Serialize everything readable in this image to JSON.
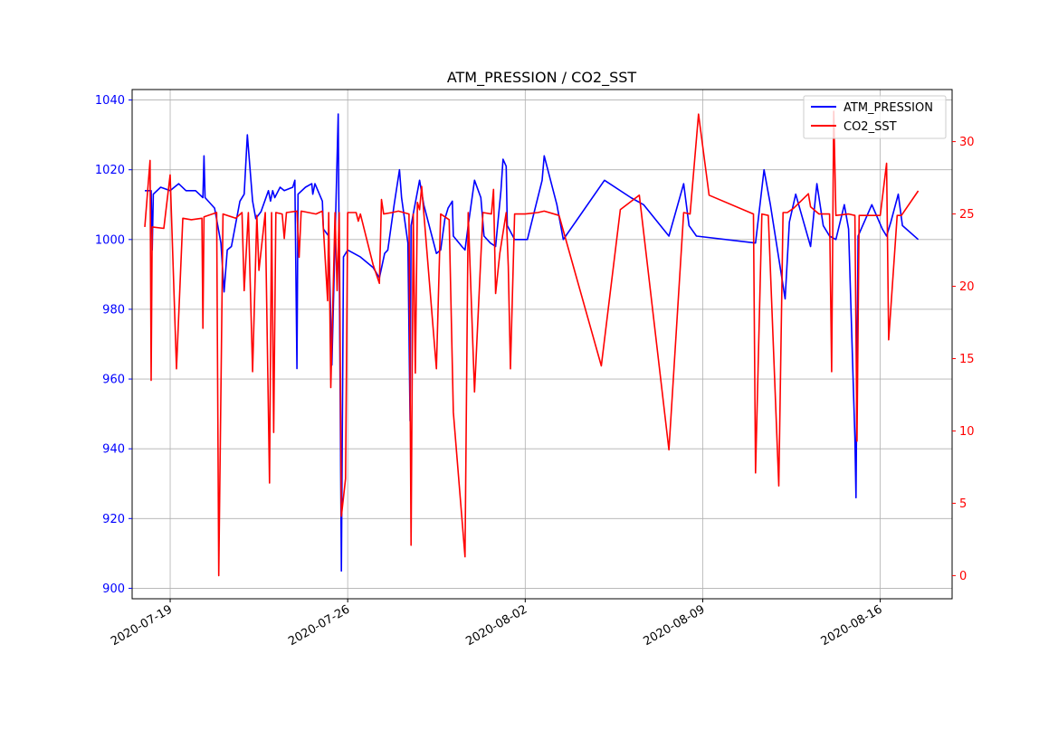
{
  "chart_data": {
    "type": "line",
    "title": "ATM_PRESSION / CO2_SST",
    "xlabel": "",
    "x_ticks": [
      "2020-07-19",
      "2020-07-26",
      "2020-08-02",
      "2020-08-09",
      "2020-08-16"
    ],
    "xlim": [
      "2020-07-17T12:00",
      "2020-08-18T20:00"
    ],
    "y_left": {
      "lim": [
        897,
        1043
      ],
      "ticks": [
        900,
        920,
        940,
        960,
        980,
        1000,
        1020,
        1040
      ],
      "color": "#0000ff"
    },
    "y_right": {
      "lim": [
        -1.6,
        33.6
      ],
      "ticks": [
        0,
        5,
        10,
        15,
        20,
        25,
        30
      ],
      "color": "#ff0000"
    },
    "grid": true,
    "legend_position": "top-right",
    "series": [
      {
        "name": "ATM_PRESSION",
        "color": "#0000ff",
        "axis": "left",
        "points": [
          [
            "2020-07-18T00:00",
            1014
          ],
          [
            "2020-07-18T06:00",
            1014
          ],
          [
            "2020-07-18T07:00",
            997
          ],
          [
            "2020-07-18T08:00",
            1013
          ],
          [
            "2020-07-18T15:00",
            1015
          ],
          [
            "2020-07-19T00:00",
            1014
          ],
          [
            "2020-07-19T08:00",
            1016
          ],
          [
            "2020-07-19T15:00",
            1014
          ],
          [
            "2020-07-20T00:00",
            1014
          ],
          [
            "2020-07-20T07:00",
            1012
          ],
          [
            "2020-07-20T08:00",
            1024
          ],
          [
            "2020-07-20T09:00",
            1012
          ],
          [
            "2020-07-20T18:00",
            1009
          ],
          [
            "2020-07-21T00:00",
            999
          ],
          [
            "2020-07-21T03:00",
            985
          ],
          [
            "2020-07-21T06:00",
            997
          ],
          [
            "2020-07-21T10:00",
            998
          ],
          [
            "2020-07-21T18:00",
            1011
          ],
          [
            "2020-07-21T22:00",
            1013
          ],
          [
            "2020-07-22T01:00",
            1030
          ],
          [
            "2020-07-22T06:00",
            1011
          ],
          [
            "2020-07-22T09:00",
            1006
          ],
          [
            "2020-07-22T14:00",
            1008
          ],
          [
            "2020-07-22T21:00",
            1014
          ],
          [
            "2020-07-22T23:00",
            1011
          ],
          [
            "2020-07-23T01:00",
            1014
          ],
          [
            "2020-07-23T03:00",
            1012
          ],
          [
            "2020-07-23T08:00",
            1015
          ],
          [
            "2020-07-23T12:00",
            1014
          ],
          [
            "2020-07-23T20:00",
            1015
          ],
          [
            "2020-07-23T22:00",
            1017
          ],
          [
            "2020-07-24T00:00",
            963
          ],
          [
            "2020-07-24T01:00",
            1013
          ],
          [
            "2020-07-24T08:00",
            1015
          ],
          [
            "2020-07-24T14:00",
            1016
          ],
          [
            "2020-07-24T15:00",
            1013
          ],
          [
            "2020-07-24T17:00",
            1016
          ],
          [
            "2020-07-25T00:00",
            1011
          ],
          [
            "2020-07-25T01:00",
            1003
          ],
          [
            "2020-07-25T06:00",
            1001
          ],
          [
            "2020-07-25T09:00",
            964
          ],
          [
            "2020-07-25T15:00",
            1036
          ],
          [
            "2020-07-25T18:00",
            905
          ],
          [
            "2020-07-25T20:00",
            995
          ],
          [
            "2020-07-26T00:00",
            997
          ],
          [
            "2020-07-26T12:00",
            995
          ],
          [
            "2020-07-27T00:00",
            992
          ],
          [
            "2020-07-27T06:00",
            989
          ],
          [
            "2020-07-27T11:00",
            996
          ],
          [
            "2020-07-27T14:00",
            997
          ],
          [
            "2020-07-27T20:00",
            1010
          ],
          [
            "2020-07-28T01:00",
            1020
          ],
          [
            "2020-07-28T03:00",
            1012
          ],
          [
            "2020-07-28T09:00",
            999
          ],
          [
            "2020-07-28T11:00",
            948
          ],
          [
            "2020-07-28T12:00",
            1004
          ],
          [
            "2020-07-28T20:00",
            1017
          ],
          [
            "2020-07-29T00:00",
            1010
          ],
          [
            "2020-07-29T12:00",
            996
          ],
          [
            "2020-07-29T16:00",
            997
          ],
          [
            "2020-07-29T20:00",
            1006
          ],
          [
            "2020-07-29T23:00",
            1009
          ],
          [
            "2020-07-30T03:00",
            1011
          ],
          [
            "2020-07-30T04:00",
            1001
          ],
          [
            "2020-07-30T12:00",
            998
          ],
          [
            "2020-07-30T15:00",
            997
          ],
          [
            "2020-07-30T18:00",
            1004
          ],
          [
            "2020-07-31T00:00",
            1017
          ],
          [
            "2020-07-31T06:00",
            1012
          ],
          [
            "2020-07-31T09:00",
            1001
          ],
          [
            "2020-07-31T15:00",
            999
          ],
          [
            "2020-07-31T20:00",
            998
          ],
          [
            "2020-08-01T01:00",
            1014
          ],
          [
            "2020-08-01T03:00",
            1023
          ],
          [
            "2020-08-01T06:00",
            1021
          ],
          [
            "2020-08-01T07:00",
            1004
          ],
          [
            "2020-08-01T14:00",
            1000
          ],
          [
            "2020-08-02T02:00",
            1000
          ],
          [
            "2020-08-02T16:00",
            1017
          ],
          [
            "2020-08-02T18:00",
            1024
          ],
          [
            "2020-08-03T06:00",
            1010
          ],
          [
            "2020-08-03T12:00",
            1000
          ],
          [
            "2020-08-05T03:00",
            1017
          ],
          [
            "2020-08-06T04:00",
            1012
          ],
          [
            "2020-08-06T16:00",
            1010
          ],
          [
            "2020-08-07T16:00",
            1001
          ],
          [
            "2020-08-08T06:00",
            1016
          ],
          [
            "2020-08-08T11:00",
            1004
          ],
          [
            "2020-08-08T18:00",
            1001
          ],
          [
            "2020-08-11T02:00",
            999
          ],
          [
            "2020-08-11T10:00",
            1020
          ],
          [
            "2020-08-11T16:00",
            1010
          ],
          [
            "2020-08-12T06:00",
            983
          ],
          [
            "2020-08-12T10:00",
            1005
          ],
          [
            "2020-08-12T16:00",
            1013
          ],
          [
            "2020-08-13T06:00",
            998
          ],
          [
            "2020-08-13T12:00",
            1016
          ],
          [
            "2020-08-13T18:00",
            1004
          ],
          [
            "2020-08-14T00:00",
            1001
          ],
          [
            "2020-08-14T06:00",
            1000
          ],
          [
            "2020-08-14T14:00",
            1010
          ],
          [
            "2020-08-14T18:00",
            1003
          ],
          [
            "2020-08-15T00:00",
            943
          ],
          [
            "2020-08-15T01:00",
            926
          ],
          [
            "2020-08-15T03:00",
            1001
          ],
          [
            "2020-08-15T16:00",
            1010
          ],
          [
            "2020-08-16T02:00",
            1003
          ],
          [
            "2020-08-16T06:00",
            1001
          ],
          [
            "2020-08-16T10:00",
            1005
          ],
          [
            "2020-08-16T17:00",
            1013
          ],
          [
            "2020-08-16T21:00",
            1004
          ],
          [
            "2020-08-17T12:00",
            1000
          ]
        ]
      },
      {
        "name": "CO2_SST",
        "color": "#ff0000",
        "axis": "right",
        "points": [
          [
            "2020-07-18T00:00",
            24.1
          ],
          [
            "2020-07-18T05:00",
            28.7
          ],
          [
            "2020-07-18T06:00",
            13.5
          ],
          [
            "2020-07-18T07:00",
            24.1
          ],
          [
            "2020-07-18T18:00",
            24.0
          ],
          [
            "2020-07-19T00:00",
            27.7
          ],
          [
            "2020-07-19T06:00",
            14.3
          ],
          [
            "2020-07-19T12:00",
            24.7
          ],
          [
            "2020-07-19T20:00",
            24.6
          ],
          [
            "2020-07-20T06:00",
            24.7
          ],
          [
            "2020-07-20T07:00",
            17.1
          ],
          [
            "2020-07-20T08:00",
            24.8
          ],
          [
            "2020-07-20T20:00",
            25.1
          ],
          [
            "2020-07-20T22:00",
            0.0
          ],
          [
            "2020-07-21T02:00",
            25.0
          ],
          [
            "2020-07-21T14:00",
            24.7
          ],
          [
            "2020-07-21T20:00",
            25.1
          ],
          [
            "2020-07-21T22:00",
            19.7
          ],
          [
            "2020-07-22T02:00",
            25.1
          ],
          [
            "2020-07-22T06:00",
            14.1
          ],
          [
            "2020-07-22T10:00",
            24.9
          ],
          [
            "2020-07-22T12:00",
            21.1
          ],
          [
            "2020-07-22T18:00",
            25.1
          ],
          [
            "2020-07-22T22:00",
            6.4
          ],
          [
            "2020-07-23T00:00",
            25.1
          ],
          [
            "2020-07-23T02:00",
            9.9
          ],
          [
            "2020-07-23T04:00",
            25.1
          ],
          [
            "2020-07-23T10:00",
            25.0
          ],
          [
            "2020-07-23T12:00",
            23.3
          ],
          [
            "2020-07-23T14:00",
            25.1
          ],
          [
            "2020-07-24T00:00",
            25.2
          ],
          [
            "2020-07-24T02:00",
            22.0
          ],
          [
            "2020-07-24T04:00",
            25.2
          ],
          [
            "2020-07-24T18:00",
            25.0
          ],
          [
            "2020-07-25T00:00",
            25.2
          ],
          [
            "2020-07-25T05:00",
            19.0
          ],
          [
            "2020-07-25T06:00",
            25.1
          ],
          [
            "2020-07-25T08:00",
            13.0
          ],
          [
            "2020-07-25T12:00",
            25.1
          ],
          [
            "2020-07-25T14:00",
            19.7
          ],
          [
            "2020-07-25T16:00",
            25.1
          ],
          [
            "2020-07-25T18:00",
            4.1
          ],
          [
            "2020-07-25T22:00",
            6.7
          ],
          [
            "2020-07-26T00:00",
            25.1
          ],
          [
            "2020-07-26T08:00",
            25.1
          ],
          [
            "2020-07-26T10:00",
            24.5
          ],
          [
            "2020-07-26T12:00",
            25.0
          ],
          [
            "2020-07-27T00:00",
            21.5
          ],
          [
            "2020-07-27T06:00",
            20.2
          ],
          [
            "2020-07-27T08:00",
            26.0
          ],
          [
            "2020-07-27T10:00",
            25.0
          ],
          [
            "2020-07-27T18:00",
            25.1
          ],
          [
            "2020-07-28T00:00",
            25.2
          ],
          [
            "2020-07-28T10:00",
            25.0
          ],
          [
            "2020-07-28T12:00",
            2.1
          ],
          [
            "2020-07-28T14:00",
            25.0
          ],
          [
            "2020-07-28T16:00",
            14.0
          ],
          [
            "2020-07-28T18:00",
            25.8
          ],
          [
            "2020-07-28T20:00",
            25.3
          ],
          [
            "2020-07-28T22:00",
            26.9
          ],
          [
            "2020-07-29T12:00",
            14.3
          ],
          [
            "2020-07-29T16:00",
            25.0
          ],
          [
            "2020-07-30T00:00",
            24.6
          ],
          [
            "2020-07-30T04:00",
            11.3
          ],
          [
            "2020-07-30T15:00",
            1.3
          ],
          [
            "2020-07-30T18:00",
            25.1
          ],
          [
            "2020-07-31T00:00",
            12.7
          ],
          [
            "2020-07-31T08:00",
            25.1
          ],
          [
            "2020-07-31T16:00",
            25.0
          ],
          [
            "2020-07-31T18:00",
            26.7
          ],
          [
            "2020-07-31T20:00",
            19.5
          ],
          [
            "2020-08-01T00:00",
            22.3
          ],
          [
            "2020-08-01T06:00",
            25.1
          ],
          [
            "2020-08-01T08:00",
            21.4
          ],
          [
            "2020-08-01T10:00",
            14.3
          ],
          [
            "2020-08-01T14:00",
            25.0
          ],
          [
            "2020-08-02T00:00",
            25.0
          ],
          [
            "2020-08-02T12:00",
            25.1
          ],
          [
            "2020-08-02T18:00",
            25.2
          ],
          [
            "2020-08-03T08:00",
            24.9
          ],
          [
            "2020-08-05T00:00",
            14.5
          ],
          [
            "2020-08-05T18:00",
            25.3
          ],
          [
            "2020-08-06T12:00",
            26.3
          ],
          [
            "2020-08-07T16:00",
            8.7
          ],
          [
            "2020-08-08T06:00",
            25.1
          ],
          [
            "2020-08-08T12:00",
            25.0
          ],
          [
            "2020-08-08T20:00",
            31.9
          ],
          [
            "2020-08-09T06:00",
            26.3
          ],
          [
            "2020-08-11T00:00",
            25.0
          ],
          [
            "2020-08-11T02:00",
            7.1
          ],
          [
            "2020-08-11T08:00",
            25.0
          ],
          [
            "2020-08-11T14:00",
            24.9
          ],
          [
            "2020-08-12T00:00",
            6.2
          ],
          [
            "2020-08-12T04:00",
            25.1
          ],
          [
            "2020-08-12T08:00",
            25.1
          ],
          [
            "2020-08-12T14:00",
            25.4
          ],
          [
            "2020-08-13T04:00",
            26.4
          ],
          [
            "2020-08-13T06:00",
            25.5
          ],
          [
            "2020-08-13T14:00",
            25.0
          ],
          [
            "2020-08-14T00:00",
            25.0
          ],
          [
            "2020-08-14T02:00",
            14.1
          ],
          [
            "2020-08-14T04:00",
            32.1
          ],
          [
            "2020-08-14T06:00",
            24.9
          ],
          [
            "2020-08-14T18:00",
            25.0
          ],
          [
            "2020-08-15T00:00",
            24.9
          ],
          [
            "2020-08-15T02:00",
            9.3
          ],
          [
            "2020-08-15T04:00",
            24.9
          ],
          [
            "2020-08-15T18:00",
            24.9
          ],
          [
            "2020-08-16T00:00",
            24.9
          ],
          [
            "2020-08-16T06:00",
            28.5
          ],
          [
            "2020-08-16T08:00",
            16.3
          ],
          [
            "2020-08-16T16:00",
            24.9
          ],
          [
            "2020-08-16T20:00",
            24.9
          ],
          [
            "2020-08-17T12:00",
            26.6
          ]
        ]
      }
    ]
  }
}
